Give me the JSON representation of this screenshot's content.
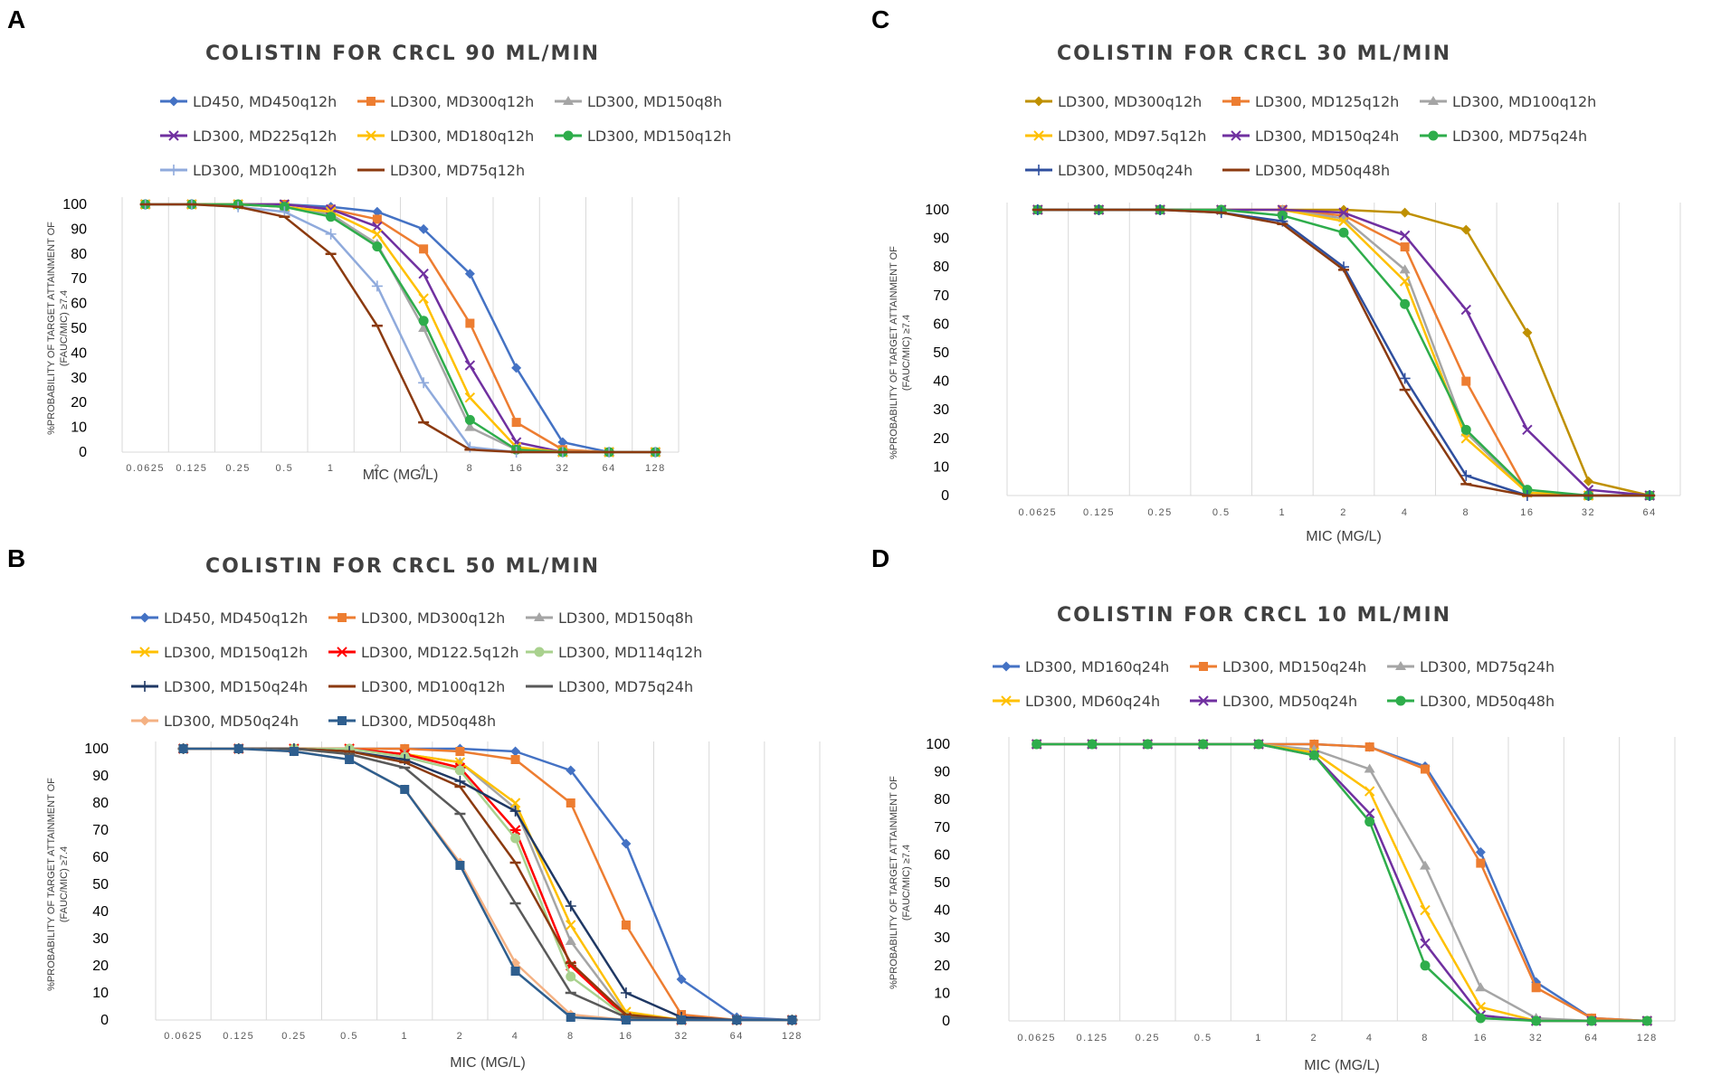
{
  "chart_data": [
    {
      "type": "line",
      "panel": "A",
      "title": "COLISTIN FOR CRCL 90 ML/MIN",
      "xlabel": "MIC (MG/L)",
      "ylabel_line1": "%PROBABILITY OF TARGET ATTAINMENT OF",
      "ylabel_line2": "(FAUC/MIC) ≥7.4",
      "ylim": [
        0,
        100
      ],
      "yticks": [
        "100",
        "90",
        "80",
        "70",
        "60",
        "50",
        "40",
        "30",
        "20",
        "10",
        "0"
      ],
      "categories": [
        "0.0625",
        "0.125",
        "0.25",
        "0.5",
        "1",
        "2",
        "4",
        "8",
        "16",
        "32",
        "64",
        "128"
      ],
      "series": [
        {
          "name": "LD450, MD450q12h",
          "color": "#4472C4",
          "marker": "diamond",
          "values": [
            100,
            100,
            100,
            100,
            99,
            97,
            90,
            72,
            34,
            4,
            0,
            0
          ]
        },
        {
          "name": "LD300, MD300q12h",
          "color": "#ED7D31",
          "marker": "square",
          "values": [
            100,
            100,
            100,
            100,
            98,
            94,
            82,
            52,
            12,
            1,
            0,
            0
          ]
        },
        {
          "name": "LD300, MD150q8h",
          "color": "#A5A5A5",
          "marker": "triangle",
          "values": [
            100,
            100,
            100,
            99,
            96,
            84,
            50,
            10,
            1,
            0,
            0,
            0
          ]
        },
        {
          "name": "LD300, MD225q12h",
          "color": "#7030A0",
          "marker": "x",
          "values": [
            100,
            100,
            100,
            100,
            98,
            91,
            72,
            35,
            4,
            0,
            0,
            0
          ]
        },
        {
          "name": "LD300, MD180q12h",
          "color": "#FFC000",
          "marker": "x",
          "values": [
            100,
            100,
            100,
            99,
            97,
            88,
            62,
            22,
            2,
            0,
            0,
            0
          ]
        },
        {
          "name": "LD300, MD150q12h",
          "color": "#2EAD4B",
          "marker": "circle",
          "values": [
            100,
            100,
            100,
            99,
            95,
            83,
            53,
            13,
            1,
            0,
            0,
            0
          ]
        },
        {
          "name": "LD300, MD100q12h",
          "color": "#8FAADC",
          "marker": "plus",
          "values": [
            100,
            100,
            99,
            97,
            88,
            67,
            28,
            2,
            0,
            0,
            0,
            0
          ]
        },
        {
          "name": "LD300, MD75q12h",
          "color": "#8B3A0F",
          "marker": "dash",
          "values": [
            100,
            100,
            99,
            95,
            80,
            51,
            12,
            1,
            0,
            0,
            0,
            0
          ]
        }
      ]
    },
    {
      "type": "line",
      "panel": "B",
      "title": "COLISTIN FOR CRCL 50 ML/MIN",
      "xlabel": "MIC (MG/L)",
      "ylabel_line1": "%PROBABILITY OF TARGET ATTAINMENT OF",
      "ylabel_line2": "(FAUC/MIC) ≥7.4",
      "ylim": [
        0,
        100
      ],
      "yticks": [
        "100",
        "90",
        "80",
        "70",
        "60",
        "50",
        "40",
        "30",
        "20",
        "10",
        "0"
      ],
      "categories": [
        "0.0625",
        "0.125",
        "0.25",
        "0.5",
        "1",
        "2",
        "4",
        "8",
        "16",
        "32",
        "64",
        "128"
      ],
      "series": [
        {
          "name": "LD450, MD450q12h",
          "color": "#4472C4",
          "marker": "diamond",
          "values": [
            100,
            100,
            100,
            100,
            100,
            100,
            99,
            92,
            65,
            15,
            1,
            0
          ]
        },
        {
          "name": "LD300, MD300q12h",
          "color": "#ED7D31",
          "marker": "square",
          "values": [
            100,
            100,
            100,
            100,
            100,
            99,
            96,
            80,
            35,
            2,
            0,
            0
          ]
        },
        {
          "name": "LD300, MD150q8h",
          "color": "#A5A5A5",
          "marker": "triangle",
          "values": [
            100,
            100,
            100,
            100,
            98,
            95,
            78,
            29,
            2,
            0,
            0,
            0
          ]
        },
        {
          "name": "LD300, MD150q12h",
          "color": "#FFC000",
          "marker": "x",
          "values": [
            100,
            100,
            100,
            100,
            98,
            95,
            80,
            35,
            3,
            0,
            0,
            0
          ]
        },
        {
          "name": "LD300, MD122.5q12h",
          "color": "#FF0000",
          "marker": "star",
          "values": [
            100,
            100,
            100,
            100,
            98,
            93,
            70,
            20,
            1,
            0,
            0,
            0
          ]
        },
        {
          "name": "LD300, MD114q12h",
          "color": "#A9D18E",
          "marker": "circle",
          "values": [
            100,
            100,
            100,
            100,
            97,
            92,
            67,
            16,
            1,
            0,
            0,
            0
          ]
        },
        {
          "name": "LD300, MD150q24h",
          "color": "#1F3864",
          "marker": "plus",
          "values": [
            100,
            100,
            100,
            99,
            96,
            88,
            77,
            42,
            10,
            1,
            0,
            0
          ]
        },
        {
          "name": "LD300, MD100q12h",
          "color": "#8B3A0F",
          "marker": "dash",
          "values": [
            100,
            100,
            100,
            99,
            95,
            86,
            58,
            21,
            2,
            0,
            0,
            0
          ]
        },
        {
          "name": "LD300, MD75q24h",
          "color": "#595959",
          "marker": "dash",
          "values": [
            100,
            100,
            100,
            98,
            93,
            76,
            43,
            10,
            1,
            0,
            0,
            0
          ]
        },
        {
          "name": "LD300, MD50q24h",
          "color": "#F4B183",
          "marker": "diamond",
          "values": [
            100,
            100,
            99,
            96,
            85,
            58,
            21,
            2,
            0,
            0,
            0,
            0
          ]
        },
        {
          "name": "LD300, MD50q48h",
          "color": "#2E5E8E",
          "marker": "square",
          "values": [
            100,
            100,
            99,
            96,
            85,
            57,
            18,
            1,
            0,
            0,
            0,
            0
          ]
        }
      ]
    },
    {
      "type": "line",
      "panel": "C",
      "title": "COLISTIN FOR CRCL 30 ML/MIN",
      "xlabel": "MIC (MG/L)",
      "ylabel_line1": "%PROBABILITY OF TARGET ATTAINMENT OF",
      "ylabel_line2": "(FAUC/MIC) ≥7.4",
      "ylim": [
        0,
        100
      ],
      "yticks": [
        "100",
        "90",
        "80",
        "70",
        "60",
        "50",
        "40",
        "30",
        "20",
        "10",
        "0"
      ],
      "categories": [
        "0.0625",
        "0.125",
        "0.25",
        "0.5",
        "1",
        "2",
        "4",
        "8",
        "16",
        "32",
        "64"
      ],
      "series": [
        {
          "name": "LD300, MD300q12h",
          "color": "#BF9000",
          "marker": "diamond",
          "values": [
            100,
            100,
            100,
            100,
            100,
            100,
            99,
            93,
            57,
            5,
            0
          ]
        },
        {
          "name": "LD300, MD125q12h",
          "color": "#ED7D31",
          "marker": "square",
          "values": [
            100,
            100,
            100,
            100,
            100,
            98,
            87,
            40,
            1,
            0,
            0
          ]
        },
        {
          "name": "LD300, MD100q12h",
          "color": "#A5A5A5",
          "marker": "triangle",
          "values": [
            100,
            100,
            100,
            100,
            100,
            97,
            79,
            22,
            1,
            0,
            0
          ]
        },
        {
          "name": "LD300, MD97.5q12h",
          "color": "#FFC000",
          "marker": "x",
          "values": [
            100,
            100,
            100,
            100,
            100,
            96,
            75,
            20,
            1,
            0,
            0
          ]
        },
        {
          "name": "LD300, MD150q24h",
          "color": "#7030A0",
          "marker": "x",
          "values": [
            100,
            100,
            100,
            100,
            100,
            99,
            91,
            65,
            23,
            2,
            0
          ]
        },
        {
          "name": "LD300, MD75q24h",
          "color": "#2EAD4B",
          "marker": "circle",
          "values": [
            100,
            100,
            100,
            100,
            98,
            92,
            67,
            23,
            2,
            0,
            0
          ]
        },
        {
          "name": "LD300, MD50q24h",
          "color": "#2F4F9E",
          "marker": "plus",
          "values": [
            100,
            100,
            100,
            99,
            96,
            80,
            41,
            7,
            0,
            0,
            0
          ]
        },
        {
          "name": "LD300, MD50q48h",
          "color": "#8B3A0F",
          "marker": "dash",
          "values": [
            100,
            100,
            100,
            99,
            95,
            79,
            37,
            4,
            0,
            0,
            0
          ]
        }
      ]
    },
    {
      "type": "line",
      "panel": "D",
      "title": "COLISTIN FOR CRCL 10 ML/MIN",
      "xlabel": "MIC (MG/L)",
      "ylabel_line1": "%PROBABILITY OF TARGET ATTAINMENT OF",
      "ylabel_line2": "(FAUC/MIC) ≥7.4",
      "ylim": [
        0,
        100
      ],
      "yticks": [
        "100",
        "90",
        "80",
        "70",
        "60",
        "50",
        "40",
        "30",
        "20",
        "10",
        "0"
      ],
      "categories": [
        "0.0625",
        "0.125",
        "0.25",
        "0.5",
        "1",
        "2",
        "4",
        "8",
        "16",
        "32",
        "64",
        "128"
      ],
      "series": [
        {
          "name": "LD300, MD160q24h",
          "color": "#4472C4",
          "marker": "diamond",
          "values": [
            100,
            100,
            100,
            100,
            100,
            100,
            99,
            92,
            61,
            14,
            1,
            0
          ]
        },
        {
          "name": "LD300, MD150q24h",
          "color": "#ED7D31",
          "marker": "square",
          "values": [
            100,
            100,
            100,
            100,
            100,
            100,
            99,
            91,
            57,
            12,
            1,
            0
          ]
        },
        {
          "name": "LD300, MD75q24h",
          "color": "#A5A5A5",
          "marker": "triangle",
          "values": [
            100,
            100,
            100,
            100,
            100,
            98,
            91,
            56,
            12,
            1,
            0,
            0
          ]
        },
        {
          "name": "LD300, MD60q24h",
          "color": "#FFC000",
          "marker": "x",
          "values": [
            100,
            100,
            100,
            100,
            100,
            97,
            83,
            40,
            5,
            0,
            0,
            0
          ]
        },
        {
          "name": "LD300, MD50q24h",
          "color": "#7030A0",
          "marker": "x",
          "values": [
            100,
            100,
            100,
            100,
            100,
            96,
            75,
            28,
            2,
            0,
            0,
            0
          ]
        },
        {
          "name": "LD300, MD50q48h",
          "color": "#2EAD4B",
          "marker": "circle",
          "values": [
            100,
            100,
            100,
            100,
            100,
            96,
            72,
            20,
            1,
            0,
            0,
            0
          ]
        }
      ]
    }
  ]
}
